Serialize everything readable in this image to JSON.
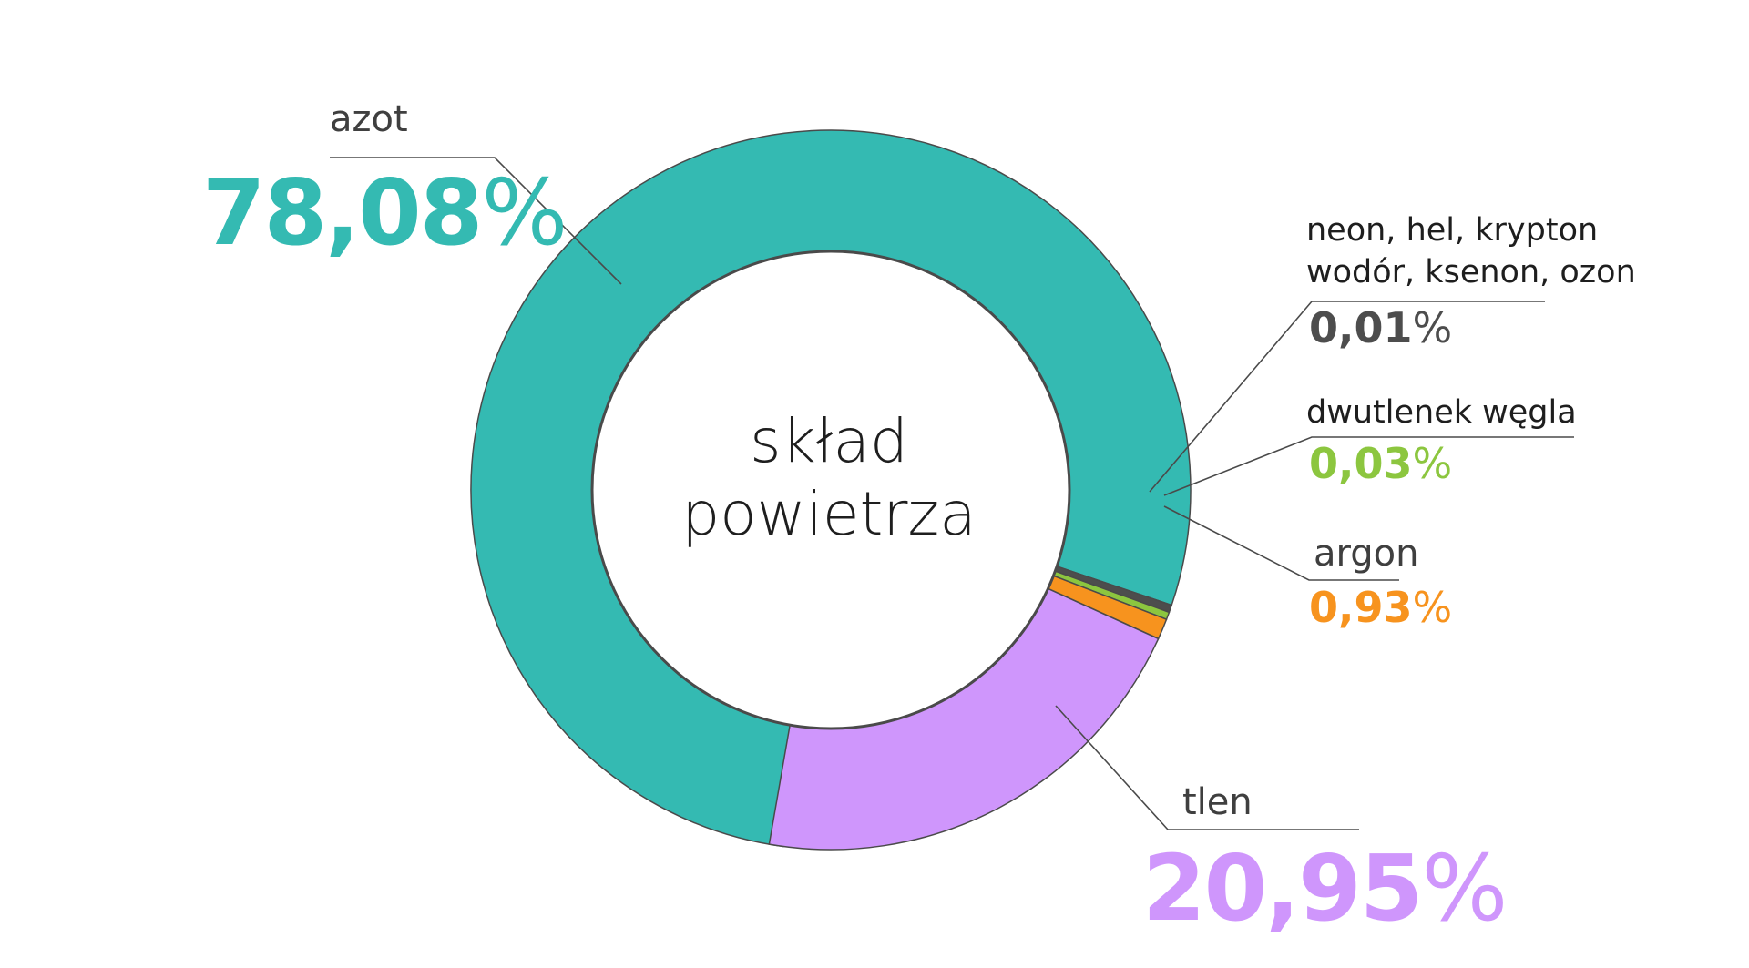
{
  "chart_data": {
    "type": "pie",
    "title": "skład powietrza",
    "center_label": [
      "skład",
      "powietrza"
    ],
    "slices": [
      {
        "name": "azot",
        "value": 78.08,
        "value_text": "78,08",
        "pct_sign": "%",
        "color": "#34BAB2"
      },
      {
        "name": "tlen",
        "value": 20.95,
        "value_text": "20,95",
        "pct_sign": "%",
        "color": "#CF96FC"
      },
      {
        "name": "argon",
        "value": 0.93,
        "value_text": "0,93",
        "pct_sign": "%",
        "color": "#F7931E"
      },
      {
        "name": "dwutlenek węgla",
        "value": 0.03,
        "value_text": "0,03",
        "pct_sign": "%",
        "color": "#8CC63F"
      },
      {
        "name_lines": [
          "neon, hel, krypton",
          "wodór, ksenon, ozon"
        ],
        "value": 0.01,
        "value_text": "0,01",
        "pct_sign": "%",
        "color": "#4D4D4D"
      }
    ]
  }
}
